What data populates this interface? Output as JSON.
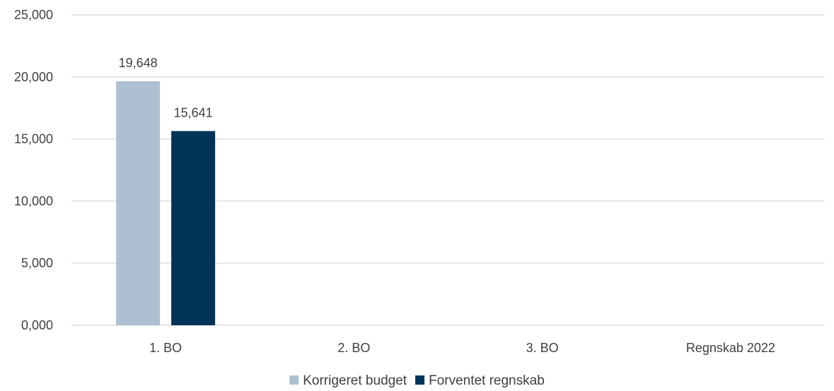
{
  "chart_data": {
    "type": "bar",
    "categories": [
      "1. BO",
      "2. BO",
      "3. BO",
      "Regnskab 2022"
    ],
    "series": [
      {
        "name": "Korrigeret budget",
        "values": [
          19.648,
          null,
          null,
          null
        ],
        "labels": [
          "19,648",
          "",
          "",
          ""
        ],
        "color": "#adc0d1"
      },
      {
        "name": "Forventet regnskab",
        "values": [
          15.641,
          null,
          null,
          null
        ],
        "labels": [
          "15,641",
          "",
          "",
          ""
        ],
        "color": "#003358"
      }
    ],
    "ylim": [
      0,
      25
    ],
    "yticks": [
      0,
      5,
      10,
      15,
      20,
      25
    ],
    "ytick_labels": [
      "0,000",
      "5,000",
      "10,000",
      "15,000",
      "20,000",
      "25,000"
    ],
    "grid": true,
    "legend": "bottom",
    "gridline_color": "#d9d9d9"
  }
}
